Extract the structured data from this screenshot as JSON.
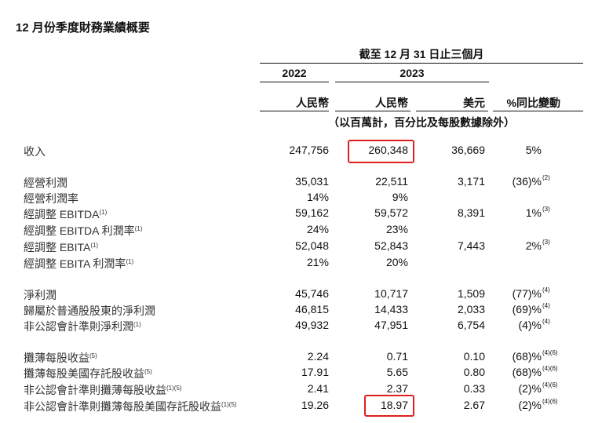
{
  "title": "12 月份季度財務業績概要",
  "header": {
    "period": "截至 12 月 31 日止三個月",
    "year_2022": "2022",
    "year_2023": "2023",
    "col_rmb_2022": "人民幣",
    "col_rmb_2023": "人民幣",
    "col_usd": "美元",
    "col_yoy": "%同比變動",
    "unit_note": "（以百萬計，百分比及每股數據除外）"
  },
  "rows": [
    {
      "label": "收入",
      "label_sup": "",
      "v2022": "247,756",
      "v2023": "260,348",
      "usd": "36,669",
      "yoy": "5%",
      "yoy_sup": ""
    },
    {
      "label": "經營利潤",
      "label_sup": "",
      "v2022": "35,031",
      "v2023": "22,511",
      "usd": "3,171",
      "yoy": "(36)%",
      "yoy_sup": "(2)"
    },
    {
      "label": "經營利潤率",
      "label_sup": "",
      "v2022": "14%",
      "v2023": "9%",
      "usd": "",
      "yoy": "",
      "yoy_sup": ""
    },
    {
      "label": "經調整 EBITDA",
      "label_sup": "(1)",
      "v2022": "59,162",
      "v2023": "59,572",
      "usd": "8,391",
      "yoy": "1%",
      "yoy_sup": "(3)"
    },
    {
      "label": "經調整 EBITDA 利潤率",
      "label_sup": "(1)",
      "v2022": "24%",
      "v2023": "23%",
      "usd": "",
      "yoy": "",
      "yoy_sup": ""
    },
    {
      "label": "經調整 EBITA",
      "label_sup": "(1)",
      "v2022": "52,048",
      "v2023": "52,843",
      "usd": "7,443",
      "yoy": "2%",
      "yoy_sup": "(3)"
    },
    {
      "label": "經調整 EBITA 利潤率",
      "label_sup": "(1)",
      "v2022": "21%",
      "v2023": "20%",
      "usd": "",
      "yoy": "",
      "yoy_sup": ""
    },
    {
      "label": "淨利潤",
      "label_sup": "",
      "v2022": "45,746",
      "v2023": "10,717",
      "usd": "1,509",
      "yoy": "(77)%",
      "yoy_sup": "(4)"
    },
    {
      "label": "歸屬於普通股股東的淨利潤",
      "label_sup": "",
      "v2022": "46,815",
      "v2023": "14,433",
      "usd": "2,033",
      "yoy": "(69)%",
      "yoy_sup": "(4)"
    },
    {
      "label": "非公認會計準則淨利潤",
      "label_sup": "(1)",
      "v2022": "49,932",
      "v2023": "47,951",
      "usd": "6,754",
      "yoy": "(4)%",
      "yoy_sup": "(4)"
    },
    {
      "label": "攤薄每股收益",
      "label_sup": "(5)",
      "v2022": "2.24",
      "v2023": "0.71",
      "usd": "0.10",
      "yoy": "(68)%",
      "yoy_sup": "(4)(6)"
    },
    {
      "label": "攤薄每股美國存託股收益",
      "label_sup": "(5)",
      "v2022": "17.91",
      "v2023": "5.65",
      "usd": "0.80",
      "yoy": "(68)%",
      "yoy_sup": "(4)(6)"
    },
    {
      "label": "非公認會計準則攤薄每股收益",
      "label_sup": "(1)(5)",
      "v2022": "2.41",
      "v2023": "2.37",
      "usd": "0.33",
      "yoy": "(2)%",
      "yoy_sup": "(4)(6)"
    },
    {
      "label": "非公認會計準則攤薄每股美國存託股收益",
      "label_sup": "(1)(5)",
      "v2022": "19.26",
      "v2023": "18.97",
      "usd": "2.67",
      "yoy": "(2)%",
      "yoy_sup": "(4)(6)"
    }
  ],
  "highlight_color": "#e02020"
}
